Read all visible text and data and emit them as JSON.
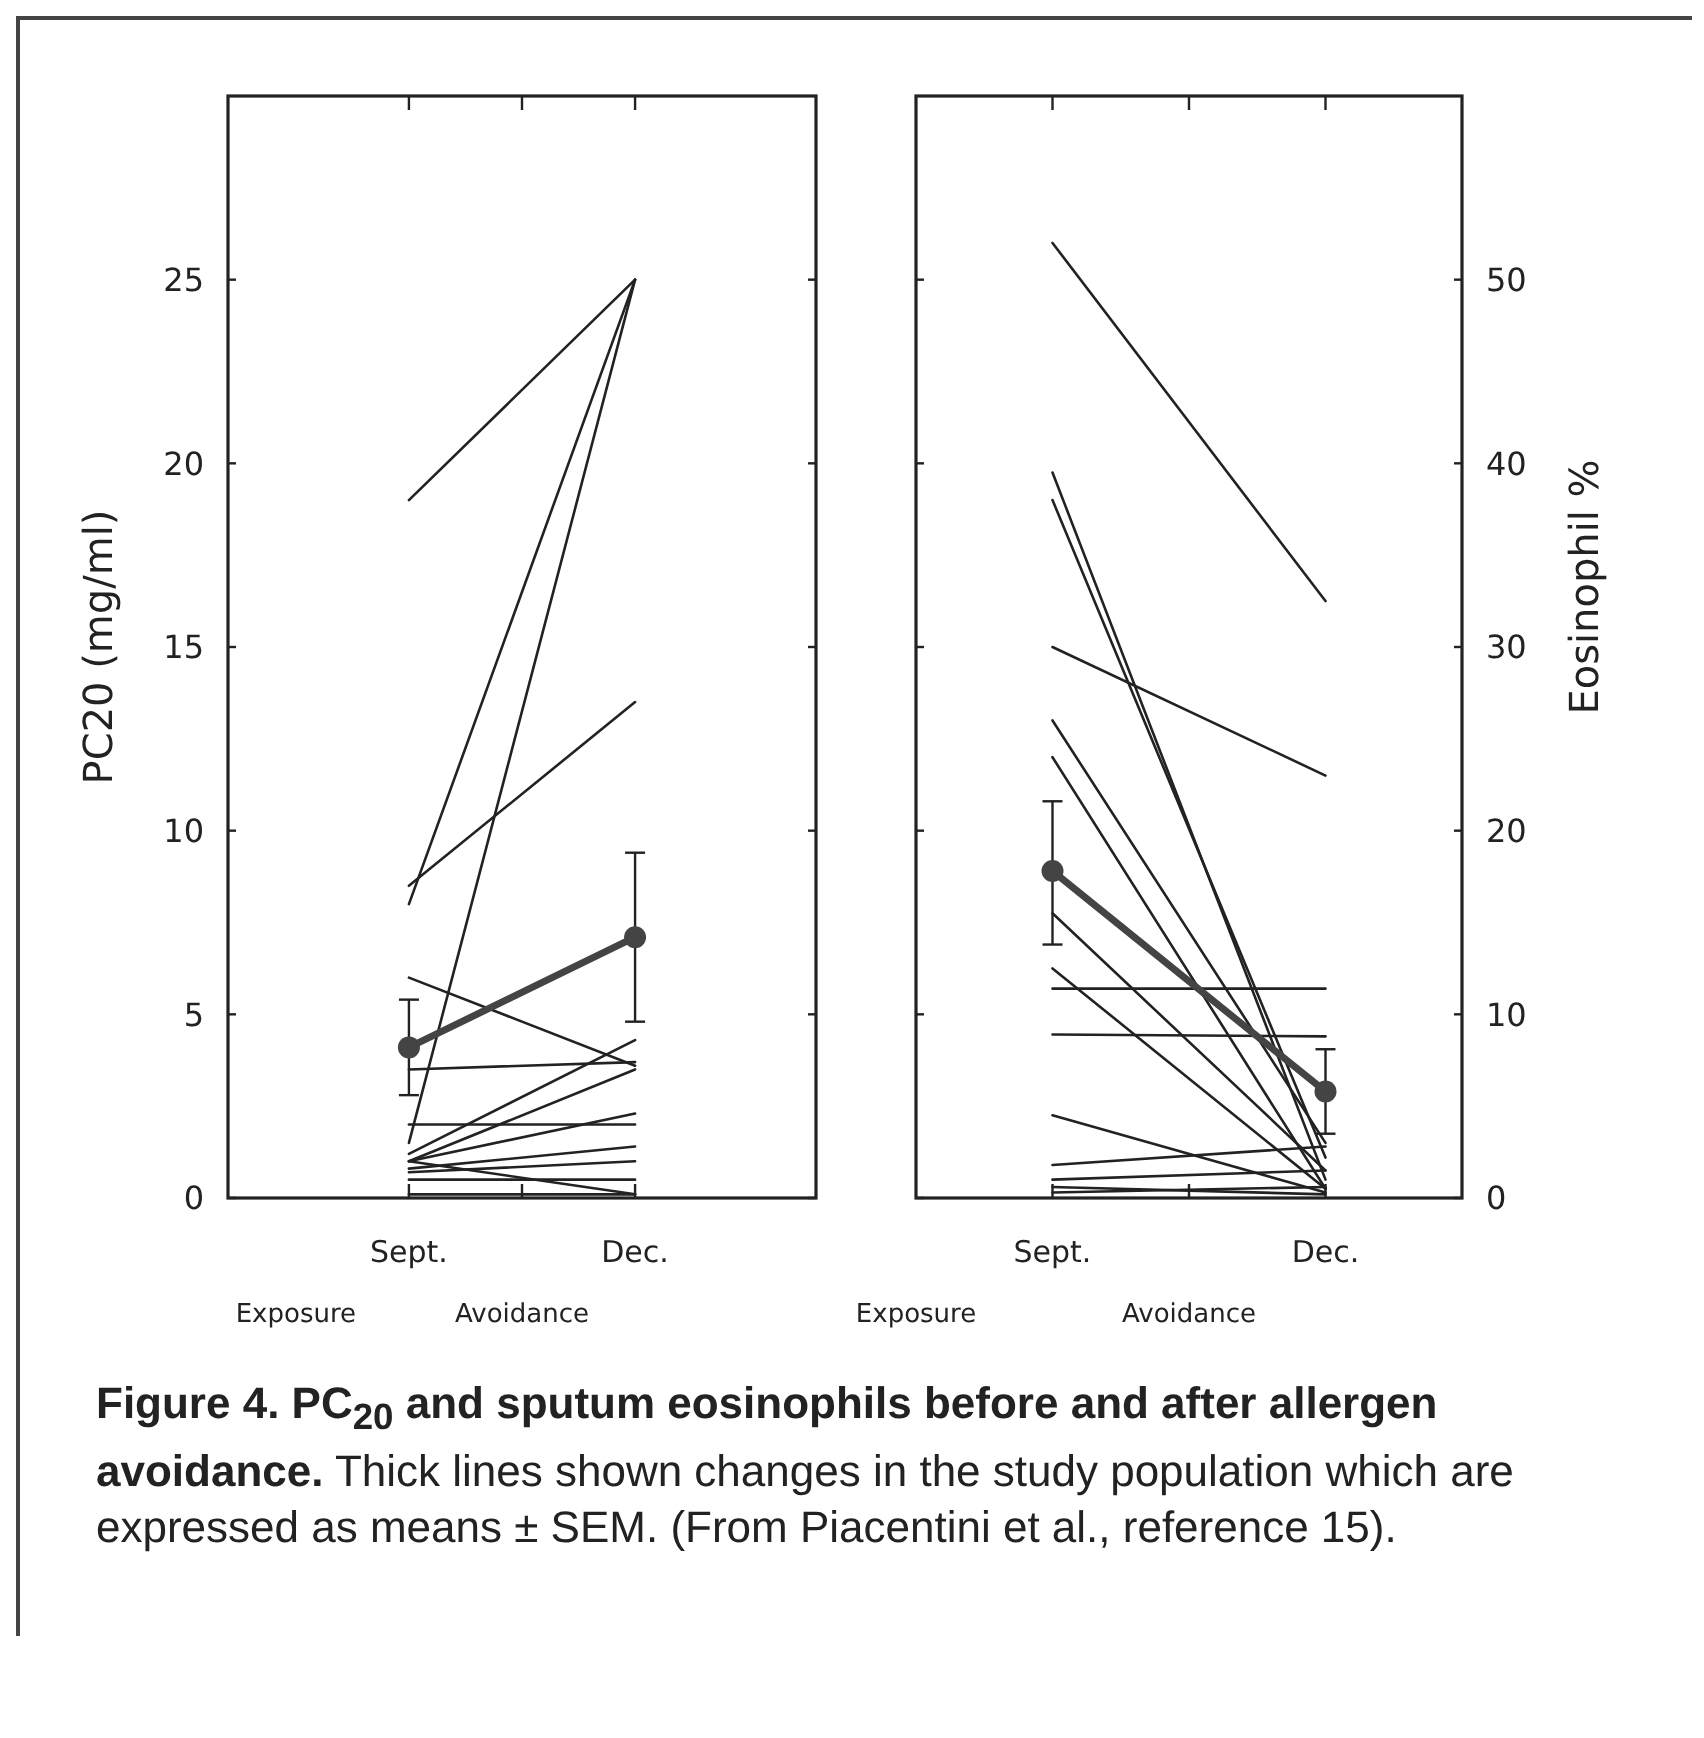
{
  "chart_data": [
    {
      "type": "line",
      "categories": [
        "Sept.",
        "Dec."
      ],
      "ylabel": "PC20 (mg/ml)",
      "ylim": [
        0,
        30
      ],
      "yticks": [
        0,
        5,
        10,
        15,
        20,
        25
      ],
      "annotations": [
        "Exposure",
        "Avoidance"
      ],
      "series": [
        {
          "color": "#222222",
          "values": [
            19,
            25
          ]
        },
        {
          "color": "#222222",
          "values": [
            8,
            25
          ]
        },
        {
          "color": "#222222",
          "values": [
            1.5,
            25
          ]
        },
        {
          "color": "#222222",
          "values": [
            8.5,
            13.5
          ]
        },
        {
          "color": "#222222",
          "values": [
            6,
            3.6
          ]
        },
        {
          "color": "#222222",
          "values": [
            3.5,
            3.7
          ]
        },
        {
          "color": "#222222",
          "values": [
            2,
            2
          ]
        },
        {
          "color": "#222222",
          "values": [
            1.2,
            4.3
          ]
        },
        {
          "color": "#222222",
          "values": [
            1,
            3.5
          ]
        },
        {
          "color": "#222222",
          "values": [
            1,
            2.3
          ]
        },
        {
          "color": "#222222",
          "values": [
            0.8,
            1.4
          ]
        },
        {
          "color": "#222222",
          "values": [
            0.7,
            1
          ]
        },
        {
          "color": "#222222",
          "values": [
            1,
            0.1
          ]
        },
        {
          "color": "#222222",
          "values": [
            0.5,
            0.5
          ]
        },
        {
          "color": "#222222",
          "values": [
            0.1,
            0.1
          ]
        },
        {
          "color": "#444444",
          "values": [
            4.1,
            7.1
          ],
          "errors": [
            [
              2.8,
              5.4
            ],
            [
              4.8,
              9.4
            ]
          ],
          "marker": "circle"
        }
      ]
    },
    {
      "type": "line",
      "categories": [
        "Sept.",
        "Dec."
      ],
      "y2label": "Eosinophil %",
      "y2lim": [
        0,
        60
      ],
      "y2ticks": [
        0,
        10,
        20,
        30,
        40,
        50
      ],
      "annotations": [
        "Exposure",
        "Avoidance"
      ],
      "title": "Figure 4. PC$_{20}$ and sputum eosinophils before and after allergen avoidance.",
      "subtitle": "Thick lines shown changes in the study population which are expressed as means ± SEM. (From Piacentini et al., reference 15).",
      "series": [
        {
          "color": "#222222",
          "axis": "y2",
          "values": [
            52,
            32.5
          ]
        },
        {
          "color": "#222222",
          "axis": "y2",
          "values": [
            39.5,
            1
          ]
        },
        {
          "color": "#222222",
          "axis": "y2",
          "values": [
            38,
            2.2
          ]
        },
        {
          "color": "#222222",
          "axis": "y2",
          "values": [
            30,
            23
          ]
        },
        {
          "color": "#222222",
          "axis": "y2",
          "values": [
            26,
            3
          ]
        },
        {
          "color": "#222222",
          "axis": "y2",
          "values": [
            24,
            0.5
          ]
        },
        {
          "color": "#222222",
          "axis": "y2",
          "values": [
            15.5,
            1.5
          ]
        },
        {
          "color": "#222222",
          "axis": "y2",
          "values": [
            12.5,
            0.5
          ]
        },
        {
          "color": "#222222",
          "axis": "y2",
          "values": [
            11.4,
            11.4
          ]
        },
        {
          "color": "#222222",
          "axis": "y2",
          "values": [
            8.9,
            8.8
          ]
        },
        {
          "color": "#222222",
          "axis": "y2",
          "values": [
            4.5,
            0.3
          ]
        },
        {
          "color": "#222222",
          "axis": "y2",
          "values": [
            1.8,
            2.8
          ]
        },
        {
          "color": "#222222",
          "axis": "y2",
          "values": [
            1,
            1.5
          ]
        },
        {
          "color": "#222222",
          "axis": "y2",
          "values": [
            0.6,
            0.2
          ]
        },
        {
          "color": "#222222",
          "axis": "y2",
          "values": [
            0.3,
            0.6
          ]
        },
        {
          "color": "#444444",
          "axis": "y2",
          "values": [
            17.8,
            5.8
          ],
          "errors": [
            [
              13.8,
              21.6
            ],
            [
              3.5,
              8.1
            ]
          ],
          "marker": "circle"
        }
      ]
    }
  ]
}
